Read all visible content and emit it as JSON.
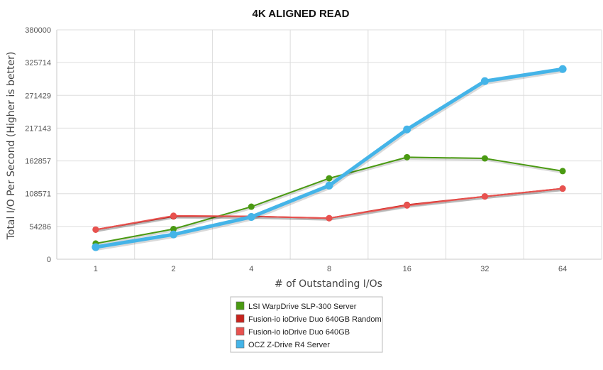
{
  "chart_data": {
    "type": "line",
    "title": "4K ALIGNED READ",
    "xlabel": "# of Outstanding I/Os",
    "ylabel": "Total I/O Per Second (Higher is better)",
    "categories": [
      "1",
      "2",
      "4",
      "8",
      "16",
      "32",
      "64"
    ],
    "yticks": [
      "0",
      "54286",
      "108571",
      "162857",
      "217143",
      "271429",
      "325714",
      "380000"
    ],
    "ylim": [
      0,
      380000
    ],
    "grid": true,
    "legend_position": "bottom",
    "series": [
      {
        "name": "LSI WarpDrive SLP-300 Server",
        "color": "#4a9a12",
        "values": [
          26000,
          50000,
          87000,
          134000,
          169000,
          167000,
          146000
        ]
      },
      {
        "name": "Fusion-io ioDrive Duo 640GB Random",
        "color": "#c8231d",
        "values": [
          49000,
          71000,
          71000,
          68000,
          90000,
          104000,
          117000
        ]
      },
      {
        "name": "Fusion-io ioDrive Duo 640GB",
        "color": "#e8524f",
        "values": [
          49000,
          72000,
          71000,
          68000,
          89000,
          104000,
          117000
        ]
      },
      {
        "name": "OCZ Z-Drive R4 Server",
        "color": "#44b4e8",
        "values": [
          20000,
          41000,
          70000,
          122000,
          215000,
          295000,
          315000
        ]
      }
    ]
  }
}
